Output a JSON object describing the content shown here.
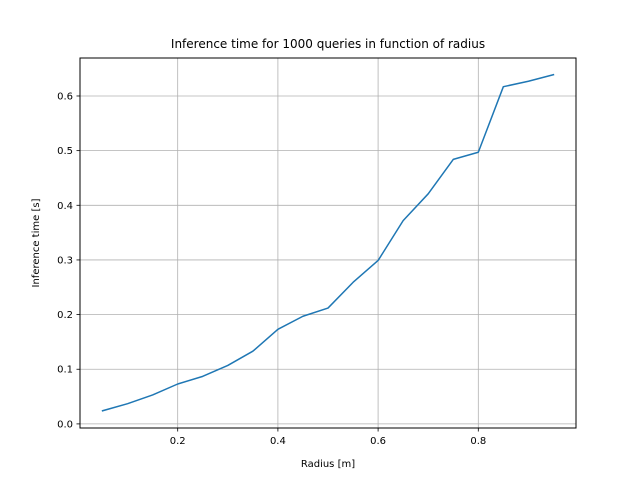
{
  "chart_data": {
    "type": "line",
    "title": "Inference time for 1000 queries in function of radius",
    "xlabel": "Radius [m]",
    "ylabel": "Inference time [s]",
    "xlim": [
      0.005,
      0.995
    ],
    "ylim": [
      -0.0075,
      0.6695
    ],
    "grid": true,
    "xticks": [
      0.2,
      0.4,
      0.6,
      0.8
    ],
    "xtick_labels": [
      "0.2",
      "0.4",
      "0.6",
      "0.8"
    ],
    "yticks": [
      0.0,
      0.1,
      0.2,
      0.3,
      0.4,
      0.5,
      0.6
    ],
    "ytick_labels": [
      "0.0",
      "0.1",
      "0.2",
      "0.3",
      "0.4",
      "0.5",
      "0.6"
    ],
    "series": [
      {
        "color": "#1f77b4",
        "x": [
          0.05,
          0.1,
          0.15,
          0.2,
          0.25,
          0.3,
          0.35,
          0.4,
          0.45,
          0.5,
          0.55,
          0.6,
          0.65,
          0.7,
          0.75,
          0.8,
          0.85,
          0.9,
          0.95
        ],
        "values": [
          0.024,
          0.037,
          0.053,
          0.073,
          0.087,
          0.107,
          0.133,
          0.173,
          0.197,
          0.212,
          0.259,
          0.299,
          0.372,
          0.421,
          0.484,
          0.497,
          0.617,
          0.627,
          0.639
        ]
      }
    ]
  }
}
